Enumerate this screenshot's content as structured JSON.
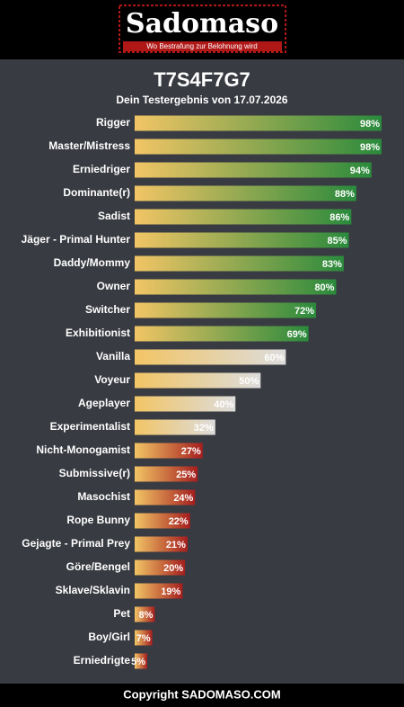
{
  "header": {
    "logo": "Sadomaso",
    "tagline": "Wo Bestrafung zur Belohnung wird"
  },
  "chart_data": {
    "type": "bar",
    "title": "T7S4F7G7",
    "subtitle": "Dein Testergebnis von 17.07.2026",
    "categories": [
      "Rigger",
      "Master/Mistress",
      "Erniedriger",
      "Dominante(r)",
      "Sadist",
      "Jäger - Primal Hunter",
      "Daddy/Mommy",
      "Owner",
      "Switcher",
      "Exhibitionist",
      "Vanilla",
      "Voyeur",
      "Ageplayer",
      "Experimentalist",
      "Nicht-Monogamist",
      "Submissive(r)",
      "Masochist",
      "Rope Bunny",
      "Gejagte - Primal Prey",
      "Göre/Bengel",
      "Sklave/Sklavin",
      "Pet",
      "Boy/Girl",
      "Erniedrigte"
    ],
    "values": [
      98,
      98,
      94,
      88,
      86,
      85,
      83,
      80,
      72,
      69,
      60,
      50,
      40,
      32,
      27,
      25,
      24,
      22,
      21,
      20,
      19,
      8,
      7,
      5
    ],
    "value_labels": [
      "98%",
      "98%",
      "94%",
      "88%",
      "86%",
      "85%",
      "83%",
      "80%",
      "72%",
      "69%",
      "60%",
      "50%",
      "40%",
      "32%",
      "27%",
      "25%",
      "24%",
      "22%",
      "21%",
      "20%",
      "19%",
      "8%",
      "7%",
      "5%"
    ],
    "gradient_start": "#f2c565",
    "colors": [
      "#2a8a3c",
      "#2a8a3c",
      "#2a8a3c",
      "#2a8a3c",
      "#2a8a3c",
      "#2a8a3c",
      "#2a8a3c",
      "#2a8a3c",
      "#2a8a3c",
      "#2a8a3c",
      "#dcdcdc",
      "#dcdcdc",
      "#dcdcdc",
      "#dcdcdc",
      "#a51e1e",
      "#a51e1e",
      "#a51e1e",
      "#a51e1e",
      "#a51e1e",
      "#a51e1e",
      "#a51e1e",
      "#a51e1e",
      "#a51e1e",
      "#a51e1e"
    ],
    "xlim": [
      0,
      100
    ]
  },
  "footer": "Copyright SADOMASO.COM"
}
